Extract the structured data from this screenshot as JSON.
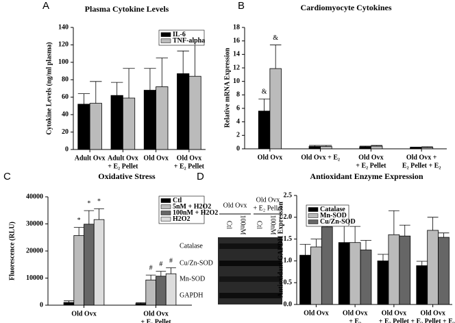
{
  "chart_data": [
    {
      "type": "bar",
      "panel": "A",
      "title": "Plasma Cytokine Levels",
      "ylabel": "Cytokine Levels (ng/ml plasma)",
      "categories": [
        [
          "Adult Ovx"
        ],
        [
          "Adult Ovx",
          "+ E₂ Pellet"
        ],
        [
          "Old Ovx"
        ],
        [
          "Old Ovx",
          "+ E₂ Pellet"
        ]
      ],
      "series": [
        {
          "name": "IL-6",
          "color": "#000000",
          "values": [
            52,
            62,
            68,
            87
          ],
          "errors": [
            12,
            15,
            25,
            26
          ]
        },
        {
          "name": "TNF-alpha",
          "color": "#bbbbbb",
          "values": [
            53,
            59,
            72,
            84
          ],
          "errors": [
            25,
            34,
            33,
            37
          ]
        }
      ],
      "ylim": [
        0,
        140
      ],
      "yticks": [
        0,
        20,
        40,
        60,
        80,
        100,
        120,
        140
      ],
      "grid": false,
      "legend": "upper right"
    },
    {
      "type": "bar",
      "panel": "B",
      "title": "Cardiomyocyte Cytokines",
      "ylabel": "Relative mRNA Expression",
      "categories": [
        [
          "Old Ovx"
        ],
        [
          "Old Ovx + E₂"
        ],
        [
          "Old Ovx",
          "+ E₂ Pellet"
        ],
        [
          "Old Ovx +",
          "E₂ Pellet + E₂"
        ]
      ],
      "series": [
        {
          "color": "#000000",
          "values": [
            5.6,
            0.35,
            0.3,
            0.2
          ],
          "errors": [
            1.8,
            0.15,
            0.1,
            0.05
          ]
        },
        {
          "color": "#bbbbbb",
          "values": [
            11.9,
            0.35,
            0.4,
            0.2
          ],
          "errors": [
            3.5,
            0.15,
            0.1,
            0.1
          ]
        }
      ],
      "annotations": [
        "&",
        "&"
      ],
      "ylim": [
        0,
        18
      ],
      "yticks": [
        0,
        2,
        4,
        6,
        8,
        10,
        12,
        14,
        16,
        18
      ],
      "grid": false
    },
    {
      "type": "bar",
      "panel": "C",
      "title": "Oxidative Stress",
      "ylabel": "Fluorescence (RLU)",
      "categories": [
        [
          "Old Ovx"
        ],
        [
          "Old Ovx",
          "+ E₂ Pellet"
        ]
      ],
      "series": [
        {
          "name": "Ctl",
          "color": "#000000",
          "values": [
            1000,
            600
          ],
          "errors": [
            600,
            300
          ]
        },
        {
          "name": "5nM + H2O2",
          "color": "#bbbbbb",
          "values": [
            25700,
            9300
          ],
          "errors": [
            3000,
            1800
          ]
        },
        {
          "name": "100nM + H2O2",
          "color": "#666666",
          "values": [
            29900,
            10700
          ],
          "errors": [
            5000,
            1800
          ]
        },
        {
          "name": "H2O2",
          "color": "#dddddd",
          "values": [
            31600,
            11600
          ],
          "errors": [
            4000,
            2200
          ]
        }
      ],
      "annotations": [
        "*",
        "*",
        "*",
        "#",
        "#",
        "#"
      ],
      "ylim": [
        0,
        40000
      ],
      "yticks": [
        0,
        10000,
        20000,
        30000,
        40000
      ],
      "grid": false,
      "legend": "upper left"
    },
    {
      "type": "bar",
      "panel": "D",
      "title": "Antioxidant Enzyme Expression",
      "ylabel": "Antioxidant/GAPDH  Expression",
      "categories": [
        [
          "Old Ovx"
        ],
        [
          "Old Ovx",
          "+ E₂"
        ],
        [
          "Old Ovx",
          "+ E₂ Pellet"
        ],
        [
          "Old Ovx",
          "+ E₂ Pellet + E₂"
        ]
      ],
      "series": [
        {
          "name": "Catalase",
          "color": "#000000",
          "values": [
            1.13,
            1.42,
            1.0,
            0.89
          ],
          "errors": [
            0.25,
            0.42,
            0.15,
            0.1
          ]
        },
        {
          "name": "Mn-SOD",
          "color": "#bbbbbb",
          "values": [
            1.32,
            1.42,
            1.6,
            1.7
          ],
          "errors": [
            0.18,
            0.37,
            0.55,
            0.3
          ]
        },
        {
          "name": "Cu/Zn-SOD",
          "color": "#666666",
          "values": [
            1.78,
            1.25,
            1.57,
            1.54
          ],
          "errors": [
            0.08,
            0.22,
            0.25,
            0.1
          ]
        }
      ],
      "ylim": [
        0,
        2.5
      ],
      "yticks": [
        {
          "value": 0,
          "label": "0.0"
        },
        0.5,
        {
          "value": 1,
          "label": "1.0"
        },
        1.5,
        {
          "value": 2,
          "label": "2.0"
        },
        2.5
      ],
      "grid": false,
      "legend": "upper left"
    }
  ],
  "blot": {
    "groups": [
      [
        "Old Ovx"
      ],
      [
        "Old Ovx",
        "+ E₂ Pellet"
      ]
    ],
    "lanes": [
      "Ctl",
      "100nM",
      "Ctl",
      "100nM"
    ],
    "rows": [
      "Catalase",
      "Cu/Zn-SOD",
      "Mn-SOD",
      "GAPDH"
    ]
  }
}
